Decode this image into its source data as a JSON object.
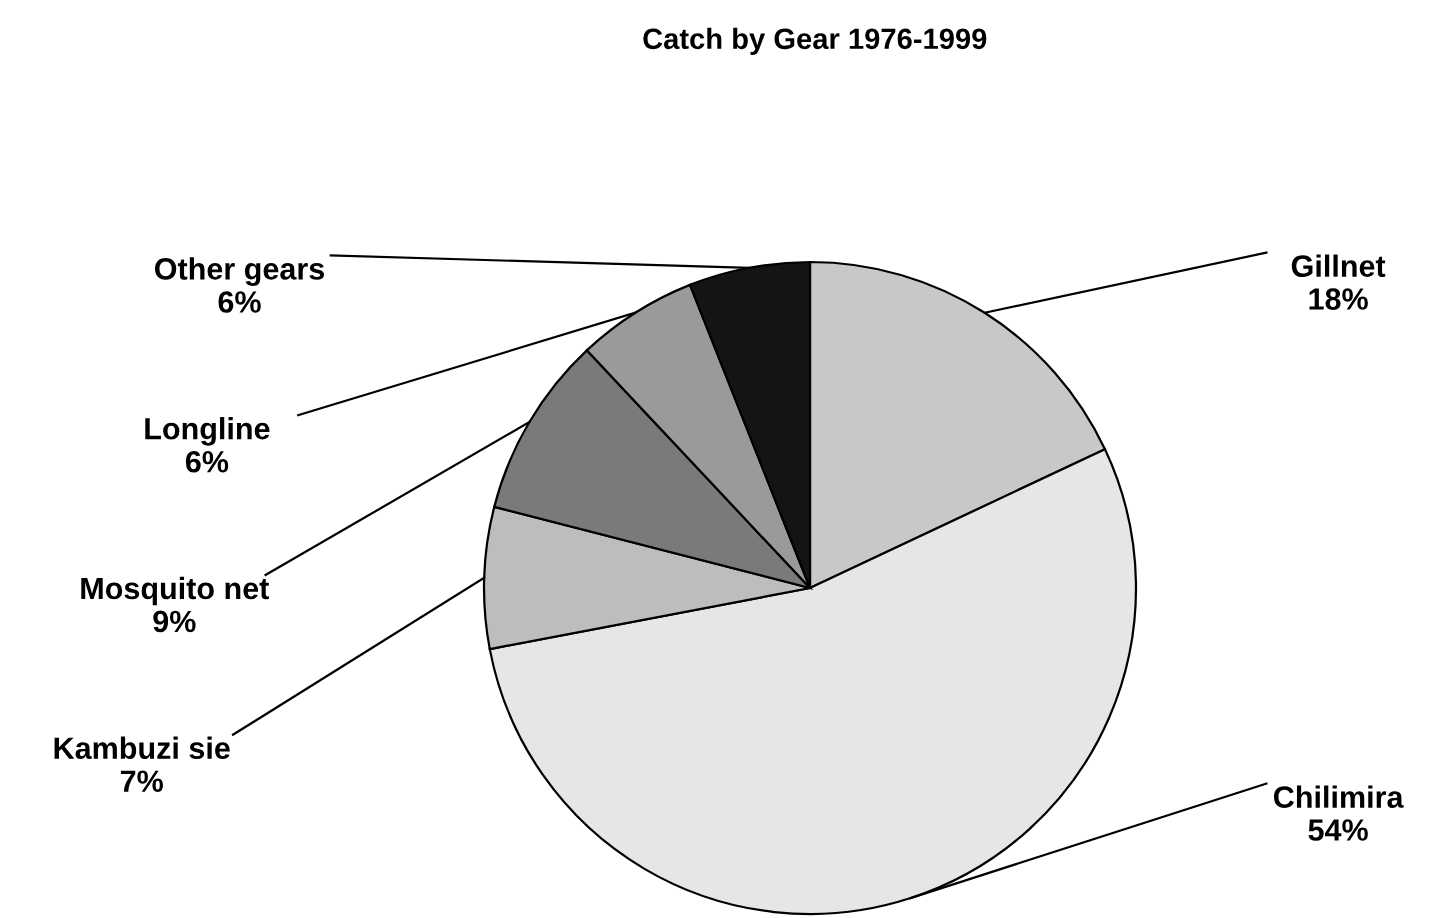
{
  "chart_data": {
    "type": "pie",
    "title": "Catch by Gear 1976-1999",
    "categories": [
      "Gillnet",
      "Chilimira",
      "Kambuzi sie",
      "Mosquito net",
      "Longline",
      "Other gears"
    ],
    "values": [
      18,
      54,
      7,
      9,
      6,
      6
    ],
    "value_labels": [
      "18%",
      "54%",
      "7%",
      "9%",
      "6%",
      "6%"
    ],
    "colors": [
      "#c8c8c8",
      "#e6e6e6",
      "#bdbdbd",
      "#7a7a7a",
      "#9a9a9a",
      "#141414"
    ]
  }
}
